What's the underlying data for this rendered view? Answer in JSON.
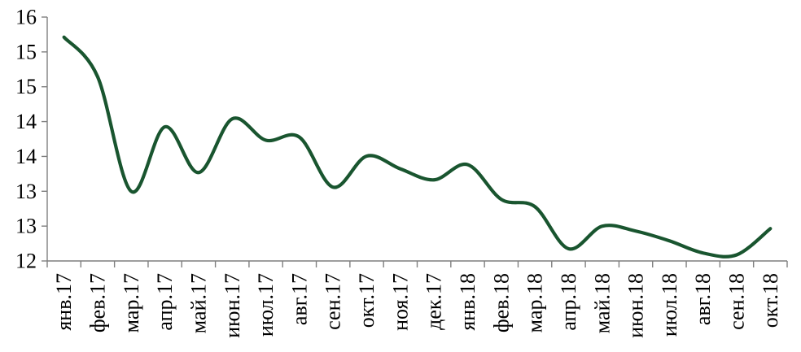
{
  "chart_data": {
    "type": "line",
    "title": "",
    "categories": [
      "янв.17",
      "фев.17",
      "мар.17",
      "апр.17",
      "май.17",
      "июн.17",
      "июл.17",
      "авг.17",
      "сен.17",
      "окт.17",
      "ноя.17",
      "дек.17",
      "янв.18",
      "фев.18",
      "мар.18",
      "апр.18",
      "май.18",
      "июн.18",
      "июл.18",
      "авг.18",
      "сен.18",
      "окт.18"
    ],
    "series": [
      {
        "name": "",
        "values": [
          15.67,
          15.02,
          13.14,
          14.2,
          13.45,
          14.33,
          13.98,
          14.03,
          13.21,
          13.72,
          13.51,
          13.33,
          13.58,
          13.01,
          12.89,
          12.2,
          12.57,
          12.49,
          12.33,
          12.13,
          12.1,
          12.53
        ]
      }
    ],
    "xlabel": "",
    "ylabel": "",
    "ylim": [
      12,
      16
    ],
    "y_tick_labels_top_to_bottom": [
      "16",
      "15",
      "15",
      "14",
      "14",
      "13",
      "13",
      "12"
    ],
    "x_tick_label_rotation_deg": -90,
    "grid": "off",
    "legend": "none",
    "line_smoothed": true,
    "colors": {
      "line": "#19552f",
      "axis": "#7f7f7f",
      "label": "#000000",
      "background": "#ffffff"
    }
  }
}
